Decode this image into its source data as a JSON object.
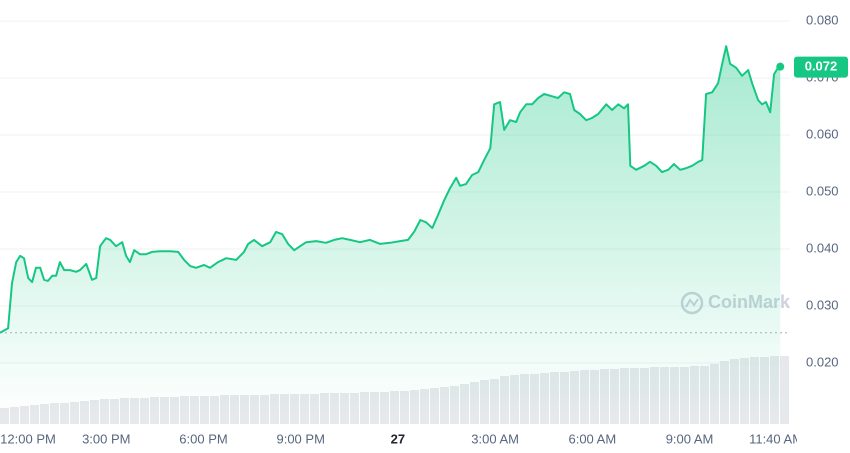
{
  "chart_data": {
    "type": "area",
    "x": [
      -0.28,
      -0.03,
      0.09,
      0.22,
      0.34,
      0.46,
      0.59,
      0.71,
      0.83,
      0.96,
      1.08,
      1.2,
      1.33,
      1.45,
      1.57,
      1.7,
      1.88,
      2.07,
      2.19,
      2.38,
      2.56,
      2.69,
      2.81,
      2.99,
      3.12,
      3.3,
      3.49,
      3.61,
      3.73,
      3.86,
      4.04,
      4.23,
      4.41,
      4.66,
      4.97,
      5.22,
      5.4,
      5.59,
      5.77,
      6.02,
      6.2,
      6.45,
      6.7,
      7.01,
      7.25,
      7.38,
      7.56,
      7.81,
      8.06,
      8.24,
      8.43,
      8.61,
      8.8,
      8.98,
      9.17,
      9.48,
      9.78,
      10.03,
      10.28,
      10.52,
      10.83,
      11.14,
      11.45,
      11.76,
      12.07,
      12.31,
      12.5,
      12.69,
      12.87,
      13.06,
      13.24,
      13.43,
      13.61,
      13.8,
      13.92,
      14.1,
      14.29,
      14.48,
      14.66,
      14.85,
      14.97,
      15.15,
      15.28,
      15.46,
      15.65,
      15.77,
      15.96,
      16.14,
      16.33,
      16.51,
      16.76,
      16.94,
      17.13,
      17.31,
      17.44,
      17.62,
      17.81,
      17.99,
      18.18,
      18.43,
      18.61,
      18.8,
      18.98,
      19.1,
      19.17,
      19.35,
      19.6,
      19.78,
      19.97,
      20.15,
      20.34,
      20.52,
      20.71,
      20.9,
      21.08,
      21.27,
      21.39,
      21.51,
      21.7,
      21.88,
      22.01,
      22.13,
      22.25,
      22.44,
      22.62,
      22.81,
      22.93,
      23.12,
      23.24,
      23.36,
      23.49,
      23.61,
      23.73,
      23.8
    ],
    "series": [
      {
        "color": "#16c784",
        "values": [
          0.0253,
          0.0261,
          0.034,
          0.0377,
          0.0388,
          0.0384,
          0.0349,
          0.0342,
          0.0367,
          0.0367,
          0.0346,
          0.0344,
          0.0353,
          0.0353,
          0.0377,
          0.0363,
          0.0363,
          0.036,
          0.0363,
          0.0374,
          0.0346,
          0.0349,
          0.0405,
          0.0419,
          0.0416,
          0.0405,
          0.0412,
          0.0388,
          0.0377,
          0.0398,
          0.0391,
          0.0391,
          0.0395,
          0.0396,
          0.0396,
          0.0395,
          0.0381,
          0.037,
          0.0367,
          0.0372,
          0.0367,
          0.0377,
          0.0384,
          0.0381,
          0.0395,
          0.0409,
          0.0416,
          0.0405,
          0.0412,
          0.043,
          0.0426,
          0.0409,
          0.0398,
          0.0405,
          0.0412,
          0.0414,
          0.0411,
          0.0416,
          0.0419,
          0.0416,
          0.0412,
          0.0416,
          0.0409,
          0.0411,
          0.0414,
          0.0416,
          0.043,
          0.0451,
          0.0447,
          0.0437,
          0.046,
          0.0486,
          0.0507,
          0.0525,
          0.0511,
          0.0514,
          0.053,
          0.0535,
          0.0556,
          0.0577,
          0.0654,
          0.0658,
          0.0609,
          0.0626,
          0.0623,
          0.064,
          0.0654,
          0.0654,
          0.0665,
          0.0672,
          0.0668,
          0.0665,
          0.0675,
          0.0672,
          0.0644,
          0.0637,
          0.0626,
          0.063,
          0.0637,
          0.0654,
          0.0644,
          0.0654,
          0.0647,
          0.0654,
          0.0546,
          0.0539,
          0.0546,
          0.0553,
          0.0546,
          0.0535,
          0.0539,
          0.0549,
          0.0539,
          0.0542,
          0.0546,
          0.0553,
          0.0556,
          0.0672,
          0.0675,
          0.0691,
          0.0726,
          0.0756,
          0.0725,
          0.0718,
          0.0704,
          0.0714,
          0.0691,
          0.0661,
          0.0654,
          0.0658,
          0.064,
          0.0707,
          0.0718,
          0.072
        ]
      }
    ],
    "open_price": 0.0253,
    "volume": {
      "color": "#e6e8ec",
      "ylim": [
        0,
        100
      ],
      "values": [
        12,
        13,
        14,
        15,
        16,
        17,
        17,
        18,
        19,
        20,
        21,
        21,
        22,
        22,
        22,
        23,
        23,
        23,
        24,
        24,
        24,
        24,
        25,
        25,
        25,
        25,
        25,
        26,
        26,
        26,
        26,
        26,
        27,
        27,
        27,
        27,
        28,
        28,
        28,
        29,
        29,
        30,
        31,
        32,
        33,
        34,
        36,
        38,
        40,
        41,
        44,
        45,
        46,
        46,
        47,
        48,
        48,
        49,
        50,
        50,
        51,
        51,
        52,
        52,
        52,
        53,
        53,
        53,
        53,
        54,
        54,
        56,
        59,
        61,
        62,
        63,
        63,
        64,
        64
      ]
    },
    "xlim": [
      -0.28,
      24.1
    ],
    "xticks": [
      {
        "value": 0,
        "label": "12:00 PM"
      },
      {
        "value": 3,
        "label": "3:00 PM"
      },
      {
        "value": 6,
        "label": "6:00 PM"
      },
      {
        "value": 9,
        "label": "9:00 PM"
      },
      {
        "value": 12,
        "label": "27"
      },
      {
        "value": 15,
        "label": "3:00 AM"
      },
      {
        "value": 18,
        "label": "6:00 AM"
      },
      {
        "value": 21,
        "label": "9:00 AM"
      },
      {
        "value": 23.67,
        "label": "11:40 AM"
      }
    ],
    "ylim": [
      0.01,
      0.0837
    ],
    "yticks": [
      {
        "value": 0.02,
        "label": "0.020"
      },
      {
        "value": 0.03,
        "label": "0.030"
      },
      {
        "value": 0.04,
        "label": "0.040"
      },
      {
        "value": 0.05,
        "label": "0.050"
      },
      {
        "value": 0.06,
        "label": "0.060"
      },
      {
        "value": 0.07,
        "label": "0.070"
      },
      {
        "value": 0.08,
        "label": "0.080"
      }
    ],
    "grid": true,
    "watermark": "CoinMarketCap"
  }
}
